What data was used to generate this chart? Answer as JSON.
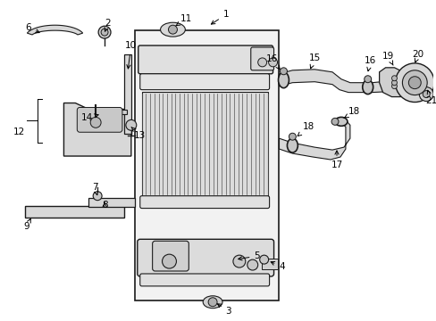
{
  "bg_color": "#ffffff",
  "line_color": "#1a1a1a",
  "fill_light": "#e8e8e8",
  "fill_med": "#d0d0d0",
  "fill_dark": "#b8b8b8",
  "figsize": [
    4.89,
    3.6
  ],
  "dpi": 100
}
